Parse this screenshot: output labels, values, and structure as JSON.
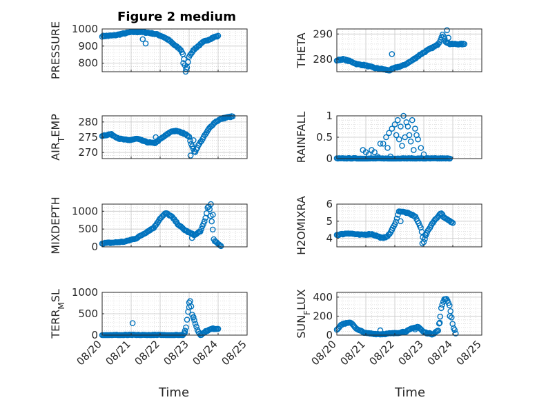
{
  "figure": {
    "title": "Figure 2 medium"
  },
  "xlabel": "Time",
  "x_tick_labels": [
    "08/20",
    "08/21",
    "08/22",
    "08/23",
    "08/24",
    "08/25"
  ],
  "marker_color": "#0072BD",
  "chart_data": [
    {
      "type": "scatter",
      "ylabel": "PRESSURE",
      "ylim": [
        750,
        1000
      ],
      "yticks": [
        800,
        900,
        1000
      ],
      "xlim": [
        "08/20",
        "08/25"
      ],
      "grid": true,
      "minor_grid": true,
      "anchors": [
        [
          20.0,
          958
        ],
        [
          20.4,
          962
        ],
        [
          20.8,
          975
        ],
        [
          21.0,
          982
        ],
        [
          21.3,
          983
        ],
        [
          21.6,
          978
        ],
        [
          21.9,
          968
        ],
        [
          22.1,
          955
        ],
        [
          22.3,
          935
        ],
        [
          22.5,
          905
        ],
        [
          22.7,
          880
        ],
        [
          22.8,
          850
        ],
        [
          22.85,
          790
        ],
        [
          22.9,
          760
        ],
        [
          22.95,
          790
        ],
        [
          23.0,
          840
        ],
        [
          23.1,
          865
        ],
        [
          23.2,
          885
        ],
        [
          23.35,
          905
        ],
        [
          23.5,
          925
        ],
        [
          23.7,
          940
        ],
        [
          23.9,
          955
        ],
        [
          24.0,
          958
        ]
      ],
      "outliers": [
        [
          21.4,
          940
        ],
        [
          21.5,
          915
        ],
        [
          22.8,
          800
        ],
        [
          22.88,
          750
        ]
      ]
    },
    {
      "type": "scatter",
      "ylabel": "THETA",
      "ylim": [
        275,
        292
      ],
      "yticks": [
        280,
        290
      ],
      "xlim": [
        "08/20",
        "08/25"
      ],
      "grid": true,
      "minor_grid": true,
      "anchors": [
        [
          20.0,
          279.5
        ],
        [
          20.2,
          280
        ],
        [
          20.5,
          279
        ],
        [
          20.7,
          278
        ],
        [
          21.0,
          277.5
        ],
        [
          21.3,
          276.5
        ],
        [
          21.6,
          276
        ],
        [
          21.8,
          275.5
        ],
        [
          22.0,
          276.5
        ],
        [
          22.3,
          277.5
        ],
        [
          22.6,
          279.5
        ],
        [
          22.9,
          282
        ],
        [
          23.2,
          284
        ],
        [
          23.45,
          285.5
        ],
        [
          23.55,
          287
        ],
        [
          23.65,
          290
        ],
        [
          23.75,
          287
        ],
        [
          23.9,
          286
        ],
        [
          24.2,
          286
        ],
        [
          24.4,
          286
        ]
      ],
      "outliers": [
        [
          21.9,
          282
        ],
        [
          23.8,
          291.5
        ],
        [
          23.85,
          288.5
        ]
      ]
    },
    {
      "type": "scatter",
      "ylabel": "AIR_TEMP",
      "ylim": [
        268,
        282
      ],
      "yticks": [
        270,
        275,
        280
      ],
      "xlim": [
        "08/20",
        "08/25"
      ],
      "grid": true,
      "minor_grid": true,
      "anchors": [
        [
          20.0,
          275.5
        ],
        [
          20.3,
          276
        ],
        [
          20.6,
          274.5
        ],
        [
          20.9,
          274
        ],
        [
          21.2,
          274.5
        ],
        [
          21.5,
          273.5
        ],
        [
          21.8,
          273
        ],
        [
          22.1,
          275
        ],
        [
          22.4,
          277
        ],
        [
          22.6,
          277
        ],
        [
          22.9,
          276
        ],
        [
          23.0,
          275
        ],
        [
          23.1,
          272
        ],
        [
          23.2,
          270
        ],
        [
          23.3,
          272
        ],
        [
          23.5,
          275
        ],
        [
          23.7,
          278
        ],
        [
          23.9,
          280
        ],
        [
          24.1,
          281
        ],
        [
          24.3,
          281.5
        ],
        [
          24.5,
          281.8
        ]
      ],
      "outliers": [
        [
          21.85,
          275
        ],
        [
          23.05,
          269
        ],
        [
          23.15,
          274
        ]
      ]
    },
    {
      "type": "scatter",
      "ylabel": "RAINFALL",
      "ylim": [
        0,
        1
      ],
      "yticks": [
        0,
        0.5,
        1
      ],
      "xlim": [
        "08/20",
        "08/25"
      ],
      "grid": true,
      "minor_grid": true,
      "anchors": [
        [
          20.0,
          0
        ],
        [
          21.0,
          0
        ],
        [
          22.0,
          0
        ],
        [
          23.0,
          0
        ],
        [
          23.9,
          0
        ]
      ],
      "outliers": [
        [
          20.9,
          0.2
        ],
        [
          21.0,
          0.15
        ],
        [
          21.1,
          0.1
        ],
        [
          21.2,
          0.2
        ],
        [
          21.3,
          0.15
        ],
        [
          21.4,
          0.05
        ],
        [
          21.5,
          0.35
        ],
        [
          21.6,
          0.35
        ],
        [
          21.7,
          0.5
        ],
        [
          21.8,
          0.6
        ],
        [
          21.9,
          0.7
        ],
        [
          22.0,
          0.8
        ],
        [
          22.1,
          0.9
        ],
        [
          22.2,
          0.75
        ],
        [
          22.3,
          1.0
        ],
        [
          22.4,
          0.85
        ],
        [
          22.5,
          0.55
        ],
        [
          22.6,
          0.9
        ],
        [
          22.7,
          0.7
        ],
        [
          22.8,
          0.45
        ],
        [
          22.9,
          0.25
        ],
        [
          23.0,
          0.1
        ],
        [
          21.85,
          0.05
        ],
        [
          22.25,
          0.3
        ],
        [
          22.55,
          0.4
        ],
        [
          22.75,
          0.55
        ],
        [
          21.75,
          0.25
        ],
        [
          22.15,
          0.45
        ],
        [
          22.35,
          0.5
        ],
        [
          22.65,
          0.2
        ],
        [
          22.45,
          0.75
        ],
        [
          22.05,
          0.55
        ]
      ]
    },
    {
      "type": "scatter",
      "ylabel": "MIXDEPTH",
      "ylim": [
        0,
        1200
      ],
      "yticks": [
        0,
        500,
        1000
      ],
      "xlim": [
        "08/20",
        "08/25"
      ],
      "grid": true,
      "minor_grid": true,
      "anchors": [
        [
          20.0,
          100
        ],
        [
          20.4,
          120
        ],
        [
          20.8,
          150
        ],
        [
          21.2,
          250
        ],
        [
          21.5,
          400
        ],
        [
          21.8,
          550
        ],
        [
          22.0,
          800
        ],
        [
          22.2,
          950
        ],
        [
          22.4,
          850
        ],
        [
          22.6,
          650
        ],
        [
          22.8,
          500
        ],
        [
          23.0,
          400
        ],
        [
          23.2,
          330
        ],
        [
          23.4,
          450
        ],
        [
          23.55,
          750
        ],
        [
          23.65,
          1150
        ],
        [
          23.7,
          1100
        ],
        [
          23.8,
          600
        ],
        [
          23.85,
          200
        ],
        [
          23.9,
          150
        ],
        [
          24.0,
          80
        ],
        [
          24.1,
          30
        ]
      ],
      "outliers": [
        [
          23.1,
          250
        ],
        [
          23.75,
          1200
        ],
        [
          23.82,
          900
        ]
      ]
    },
    {
      "type": "scatter",
      "ylabel": "H2OMIXRA",
      "ylim": [
        3.5,
        6
      ],
      "yticks": [
        4,
        5,
        6
      ],
      "xlim": [
        "08/20",
        "08/25"
      ],
      "grid": true,
      "minor_grid": true,
      "anchors": [
        [
          20.0,
          4.2
        ],
        [
          20.4,
          4.3
        ],
        [
          20.8,
          4.2
        ],
        [
          21.2,
          4.25
        ],
        [
          21.6,
          4.0
        ],
        [
          21.8,
          4.2
        ],
        [
          22.0,
          4.8
        ],
        [
          22.15,
          5.6
        ],
        [
          22.4,
          5.5
        ],
        [
          22.7,
          5.3
        ],
        [
          22.9,
          4.6
        ],
        [
          23.0,
          3.8
        ],
        [
          23.1,
          4.3
        ],
        [
          23.3,
          4.9
        ],
        [
          23.5,
          5.3
        ],
        [
          23.6,
          5.5
        ],
        [
          23.7,
          5.2
        ],
        [
          23.9,
          5.0
        ],
        [
          24.0,
          4.9
        ]
      ],
      "outliers": [
        [
          22.95,
          3.7
        ],
        [
          23.05,
          4.2
        ],
        [
          21.9,
          4.5
        ],
        [
          22.2,
          5.0
        ]
      ]
    },
    {
      "type": "scatter",
      "ylabel": "TERR_MSL",
      "ylim": [
        0,
        1000
      ],
      "yticks": [
        0,
        500,
        1000
      ],
      "xlim": [
        "08/20",
        "08/25"
      ],
      "grid": true,
      "minor_grid": true,
      "anchors": [
        [
          20.0,
          0
        ],
        [
          21.0,
          0
        ],
        [
          22.0,
          0
        ],
        [
          22.8,
          0
        ],
        [
          22.9,
          200
        ],
        [
          23.0,
          750
        ],
        [
          23.05,
          800
        ],
        [
          23.1,
          500
        ],
        [
          23.2,
          300
        ],
        [
          23.3,
          100
        ],
        [
          23.4,
          0
        ],
        [
          23.6,
          100
        ],
        [
          23.8,
          150
        ],
        [
          24.0,
          150
        ]
      ],
      "outliers": [
        [
          21.05,
          280
        ],
        [
          22.85,
          50
        ],
        [
          23.0,
          650
        ],
        [
          23.15,
          420
        ]
      ]
    },
    {
      "type": "scatter",
      "ylabel": "SUN_FLUX",
      "ylim": [
        0,
        450
      ],
      "yticks": [
        0,
        200,
        400
      ],
      "xlim": [
        "08/20",
        "08/25"
      ],
      "grid": true,
      "minor_grid": true,
      "anchors": [
        [
          20.0,
          60
        ],
        [
          20.2,
          120
        ],
        [
          20.5,
          130
        ],
        [
          20.7,
          60
        ],
        [
          21.0,
          20
        ],
        [
          21.5,
          10
        ],
        [
          22.0,
          20
        ],
        [
          22.4,
          40
        ],
        [
          22.6,
          70
        ],
        [
          22.8,
          90
        ],
        [
          23.0,
          30
        ],
        [
          23.3,
          10
        ],
        [
          23.5,
          50
        ],
        [
          23.6,
          280
        ],
        [
          23.7,
          380
        ],
        [
          23.8,
          380
        ],
        [
          23.9,
          300
        ],
        [
          24.0,
          100
        ],
        [
          24.1,
          20
        ]
      ],
      "outliers": [
        [
          21.5,
          50
        ],
        [
          22.7,
          60
        ],
        [
          23.55,
          130
        ],
        [
          23.9,
          200
        ]
      ]
    }
  ]
}
